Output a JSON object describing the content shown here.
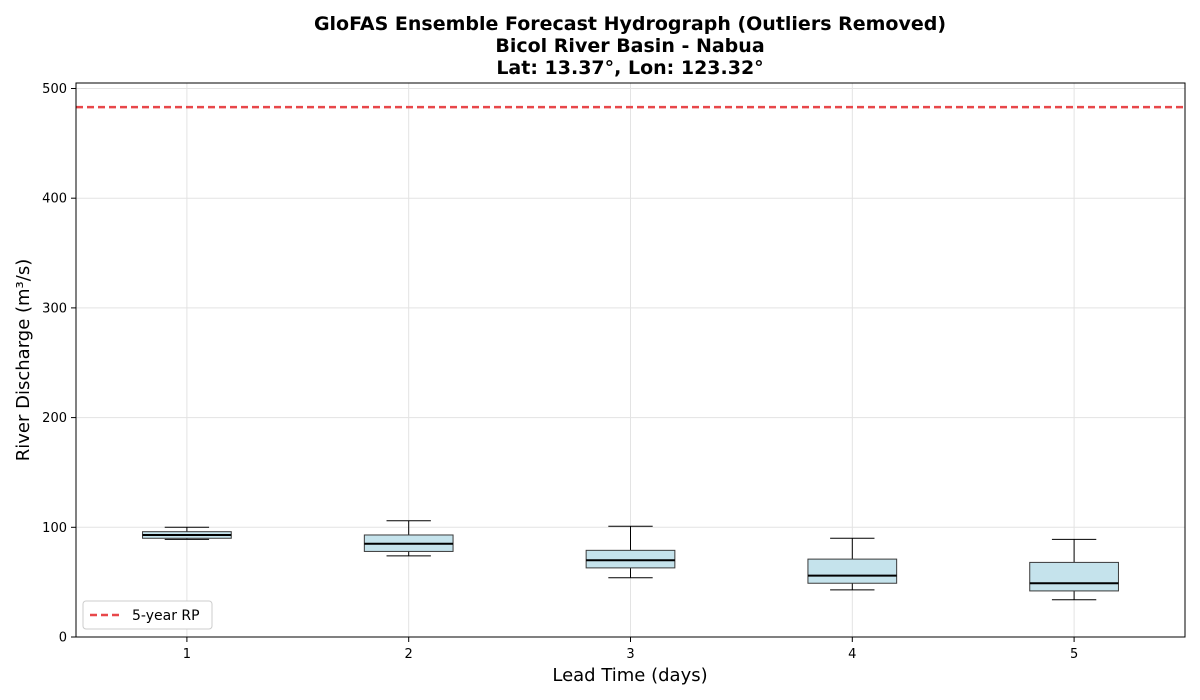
{
  "chart_data": {
    "type": "box",
    "title": [
      "GloFAS Ensemble Forecast Hydrograph (Outliers Removed)",
      "Bicol River Basin - Nabua",
      "Lat: 13.37°, Lon: 123.32°"
    ],
    "xlabel": "Lead Time (days)",
    "ylabel": "River Discharge (m³/s)",
    "categories": [
      "1",
      "2",
      "3",
      "4",
      "5"
    ],
    "xlim": [
      0.5,
      5.5
    ],
    "ylim": [
      0,
      505
    ],
    "y_ticks": [
      0,
      100,
      200,
      300,
      400,
      500
    ],
    "grid": true,
    "boxes": [
      {
        "x": 1,
        "whisker_low": 89,
        "q1": 90,
        "median": 93,
        "q3": 96,
        "whisker_high": 100
      },
      {
        "x": 2,
        "whisker_low": 74,
        "q1": 78,
        "median": 85,
        "q3": 93,
        "whisker_high": 106
      },
      {
        "x": 3,
        "whisker_low": 54,
        "q1": 63,
        "median": 70,
        "q3": 79,
        "whisker_high": 101
      },
      {
        "x": 4,
        "whisker_low": 43,
        "q1": 49,
        "median": 56,
        "q3": 71,
        "whisker_high": 90
      },
      {
        "x": 5,
        "whisker_low": 34,
        "q1": 42,
        "median": 49,
        "q3": 68,
        "whisker_high": 89
      }
    ],
    "reference_line": {
      "label": "5-year RP",
      "value": 483,
      "color": "#e8474a",
      "style": "dashed"
    },
    "box_color": "#c5e3ec",
    "legend": {
      "position": "lower-left",
      "entries": [
        "5-year RP"
      ]
    }
  }
}
